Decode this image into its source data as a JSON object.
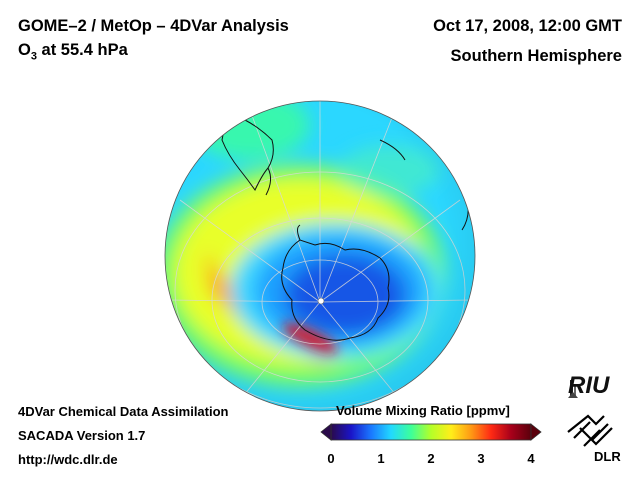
{
  "header": {
    "title": "GOME–2 / MetOp – 4DVar Analysis",
    "species_prefix": "O",
    "species_sub": "3",
    "species_suffix": " at 55.4 hPa",
    "datetime": "Oct 17, 2008, 12:00 GMT",
    "hemisphere": "Southern Hemisphere"
  },
  "footer": {
    "line1": "4DVar Chemical Data Assimilation",
    "line2": "SACADA Version 1.7",
    "line3": "http://wdc.dlr.de"
  },
  "colorbar": {
    "title": "Volume Mixing Ratio [ppmv]",
    "ticks": [
      "0",
      "1",
      "2",
      "3",
      "4"
    ],
    "range": [
      0,
      4
    ],
    "colors": [
      "#2a0a4a",
      "#1a14c8",
      "#1a78ff",
      "#22d8ff",
      "#3cff9a",
      "#b4ff28",
      "#ffee1a",
      "#ff9a14",
      "#ff2a14",
      "#a8001a",
      "#5a000c"
    ]
  },
  "logos": {
    "riu": "RIU",
    "dlr": "DLR"
  },
  "map": {
    "projection": "orthographic, south polar",
    "center": "South Pole",
    "colors": {
      "background": "#2bd7ff",
      "high_band": "#ff2a14",
      "hole_core": "#1656e6"
    }
  }
}
